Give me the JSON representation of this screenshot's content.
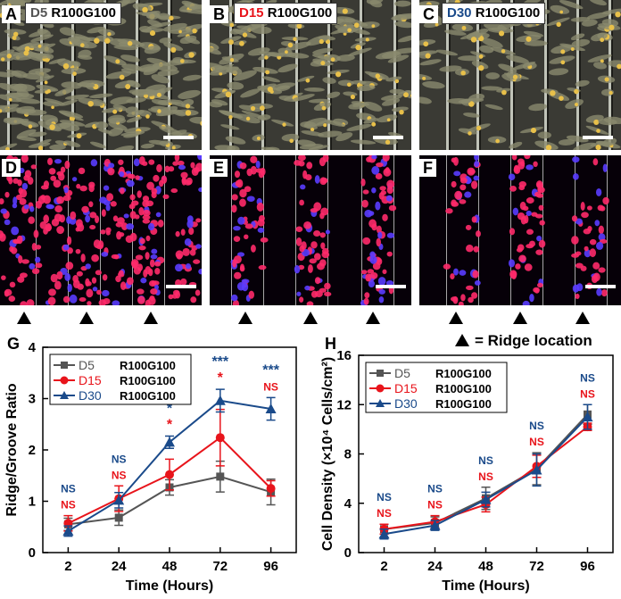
{
  "panels": {
    "A": {
      "letter": "A",
      "day": "D5",
      "cond": "R100G100",
      "day_color": "#555555"
    },
    "B": {
      "letter": "B",
      "day": "D15",
      "cond": "R100G100",
      "day_color": "#e8141b"
    },
    "C": {
      "letter": "C",
      "day": "D30",
      "cond": "R100G100",
      "day_color": "#1a4a8a"
    },
    "D": {
      "letter": "D"
    },
    "E": {
      "letter": "E"
    },
    "F": {
      "letter": "F"
    }
  },
  "ridge_legend": "= Ridge location",
  "chart_data": [
    {
      "type": "line",
      "panel": "G",
      "ylabel": "Ridge/Groove Ratio",
      "xlabel": "Time (Hours)",
      "categories": [
        "2",
        "24",
        "48",
        "72",
        "96"
      ],
      "ylim": [
        0,
        4
      ],
      "yticks": [
        "0",
        "1",
        "2",
        "3",
        "4"
      ],
      "legend": [
        {
          "day": "D5",
          "cond": "R100G100"
        },
        {
          "day": "D15",
          "cond": "R100G100"
        },
        {
          "day": "D30",
          "cond": "R100G100"
        }
      ],
      "series": [
        {
          "name": "D5 R100G100",
          "color": "#555555",
          "marker": "square",
          "values": [
            0.55,
            0.68,
            1.27,
            1.48,
            1.18
          ],
          "errors": [
            0.12,
            0.15,
            0.15,
            0.3,
            0.25
          ]
        },
        {
          "name": "D15 R100G100",
          "color": "#e8141b",
          "marker": "circle",
          "values": [
            0.57,
            1.05,
            1.52,
            2.24,
            1.25
          ],
          "errors": [
            0.15,
            0.25,
            0.3,
            0.55,
            0.15
          ]
        },
        {
          "name": "D30 R100G100",
          "color": "#1a4a8a",
          "marker": "triangle",
          "values": [
            0.42,
            1.02,
            2.15,
            2.96,
            2.8
          ],
          "errors": [
            0.1,
            0.15,
            0.12,
            0.22,
            0.22
          ]
        }
      ],
      "significance": [
        {
          "blue": "NS",
          "red": "NS"
        },
        {
          "blue": "NS",
          "red": "NS"
        },
        {
          "blue": "*",
          "red": "*"
        },
        {
          "blue": "***",
          "red": "*"
        },
        {
          "blue": "***",
          "red": "NS"
        }
      ]
    },
    {
      "type": "line",
      "panel": "H",
      "ylabel": "Cell Density (×10⁴ Cells/cm²)",
      "xlabel": "Time (Hours)",
      "categories": [
        "2",
        "24",
        "48",
        "72",
        "96"
      ],
      "ylim": [
        0,
        16
      ],
      "yticks": [
        "0",
        "4",
        "8",
        "12",
        "16"
      ],
      "legend": [
        {
          "day": "D5",
          "cond": "R100G100"
        },
        {
          "day": "D15",
          "cond": "R100G100"
        },
        {
          "day": "D30",
          "cond": "R100G100"
        }
      ],
      "series": [
        {
          "name": "D5 R100G100",
          "color": "#555555",
          "marker": "square",
          "values": [
            1.9,
            2.4,
            4.4,
            6.8,
            11.2
          ],
          "errors": [
            0.4,
            0.5,
            0.9,
            1.3,
            0.8
          ]
        },
        {
          "name": "D15 R100G100",
          "color": "#e8141b",
          "marker": "circle",
          "values": [
            1.9,
            2.5,
            3.9,
            7.0,
            10.2
          ],
          "errors": [
            0.4,
            0.5,
            0.6,
            0.9,
            0.3
          ]
        },
        {
          "name": "D30 R100G100",
          "color": "#1a4a8a",
          "marker": "triangle",
          "values": [
            1.5,
            2.2,
            4.3,
            6.7,
            11.0
          ],
          "errors": [
            0.4,
            0.4,
            0.6,
            1.3,
            1.0
          ]
        }
      ],
      "significance": [
        {
          "blue": "NS",
          "red": "NS"
        },
        {
          "blue": "NS",
          "red": "NS"
        },
        {
          "blue": "NS",
          "red": "NS"
        },
        {
          "blue": "NS",
          "red": "NS"
        },
        {
          "blue": "NS",
          "red": "NS"
        }
      ]
    }
  ]
}
